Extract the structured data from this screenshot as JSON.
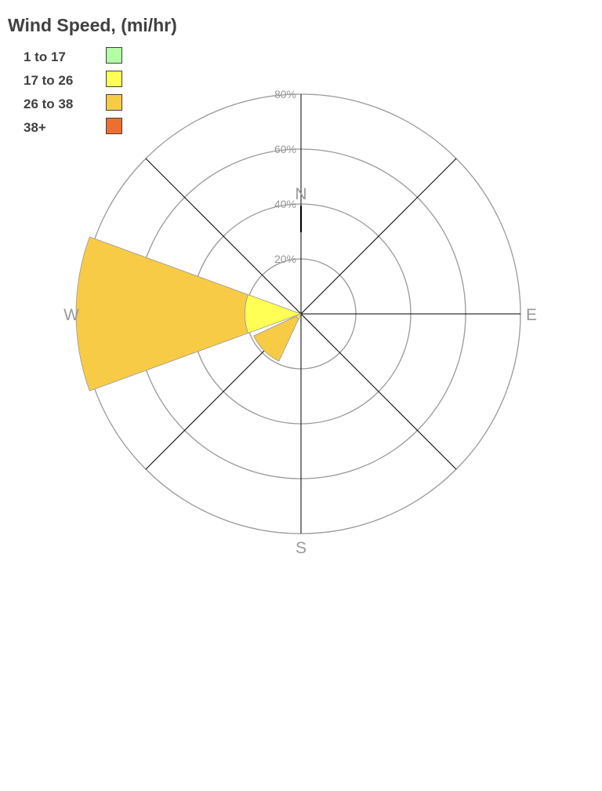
{
  "chart_data": {
    "type": "wind-rose",
    "title": "Wind Speed, (mi/hr)",
    "legend": [
      {
        "label": "1 to 17",
        "color": "#b3ffa6"
      },
      {
        "label": "17 to 26",
        "color": "#ffff55"
      },
      {
        "label": "26 to 38",
        "color": "#f7cb45"
      },
      {
        "label": "38+",
        "color": "#ec6f2f"
      }
    ],
    "legend_position": "top-left",
    "radial_ticks": [
      "20%",
      "40%",
      "60%",
      "80%"
    ],
    "radial_max": 80,
    "directions": [
      "N",
      "E",
      "S",
      "W"
    ],
    "series": [
      {
        "direction": "W",
        "bearing": 270,
        "values": [
          0,
          20.5,
          61.5,
          0
        ]
      },
      {
        "direction": "SW",
        "bearing": 225,
        "values": [
          0,
          2,
          17,
          0
        ]
      }
    ]
  }
}
